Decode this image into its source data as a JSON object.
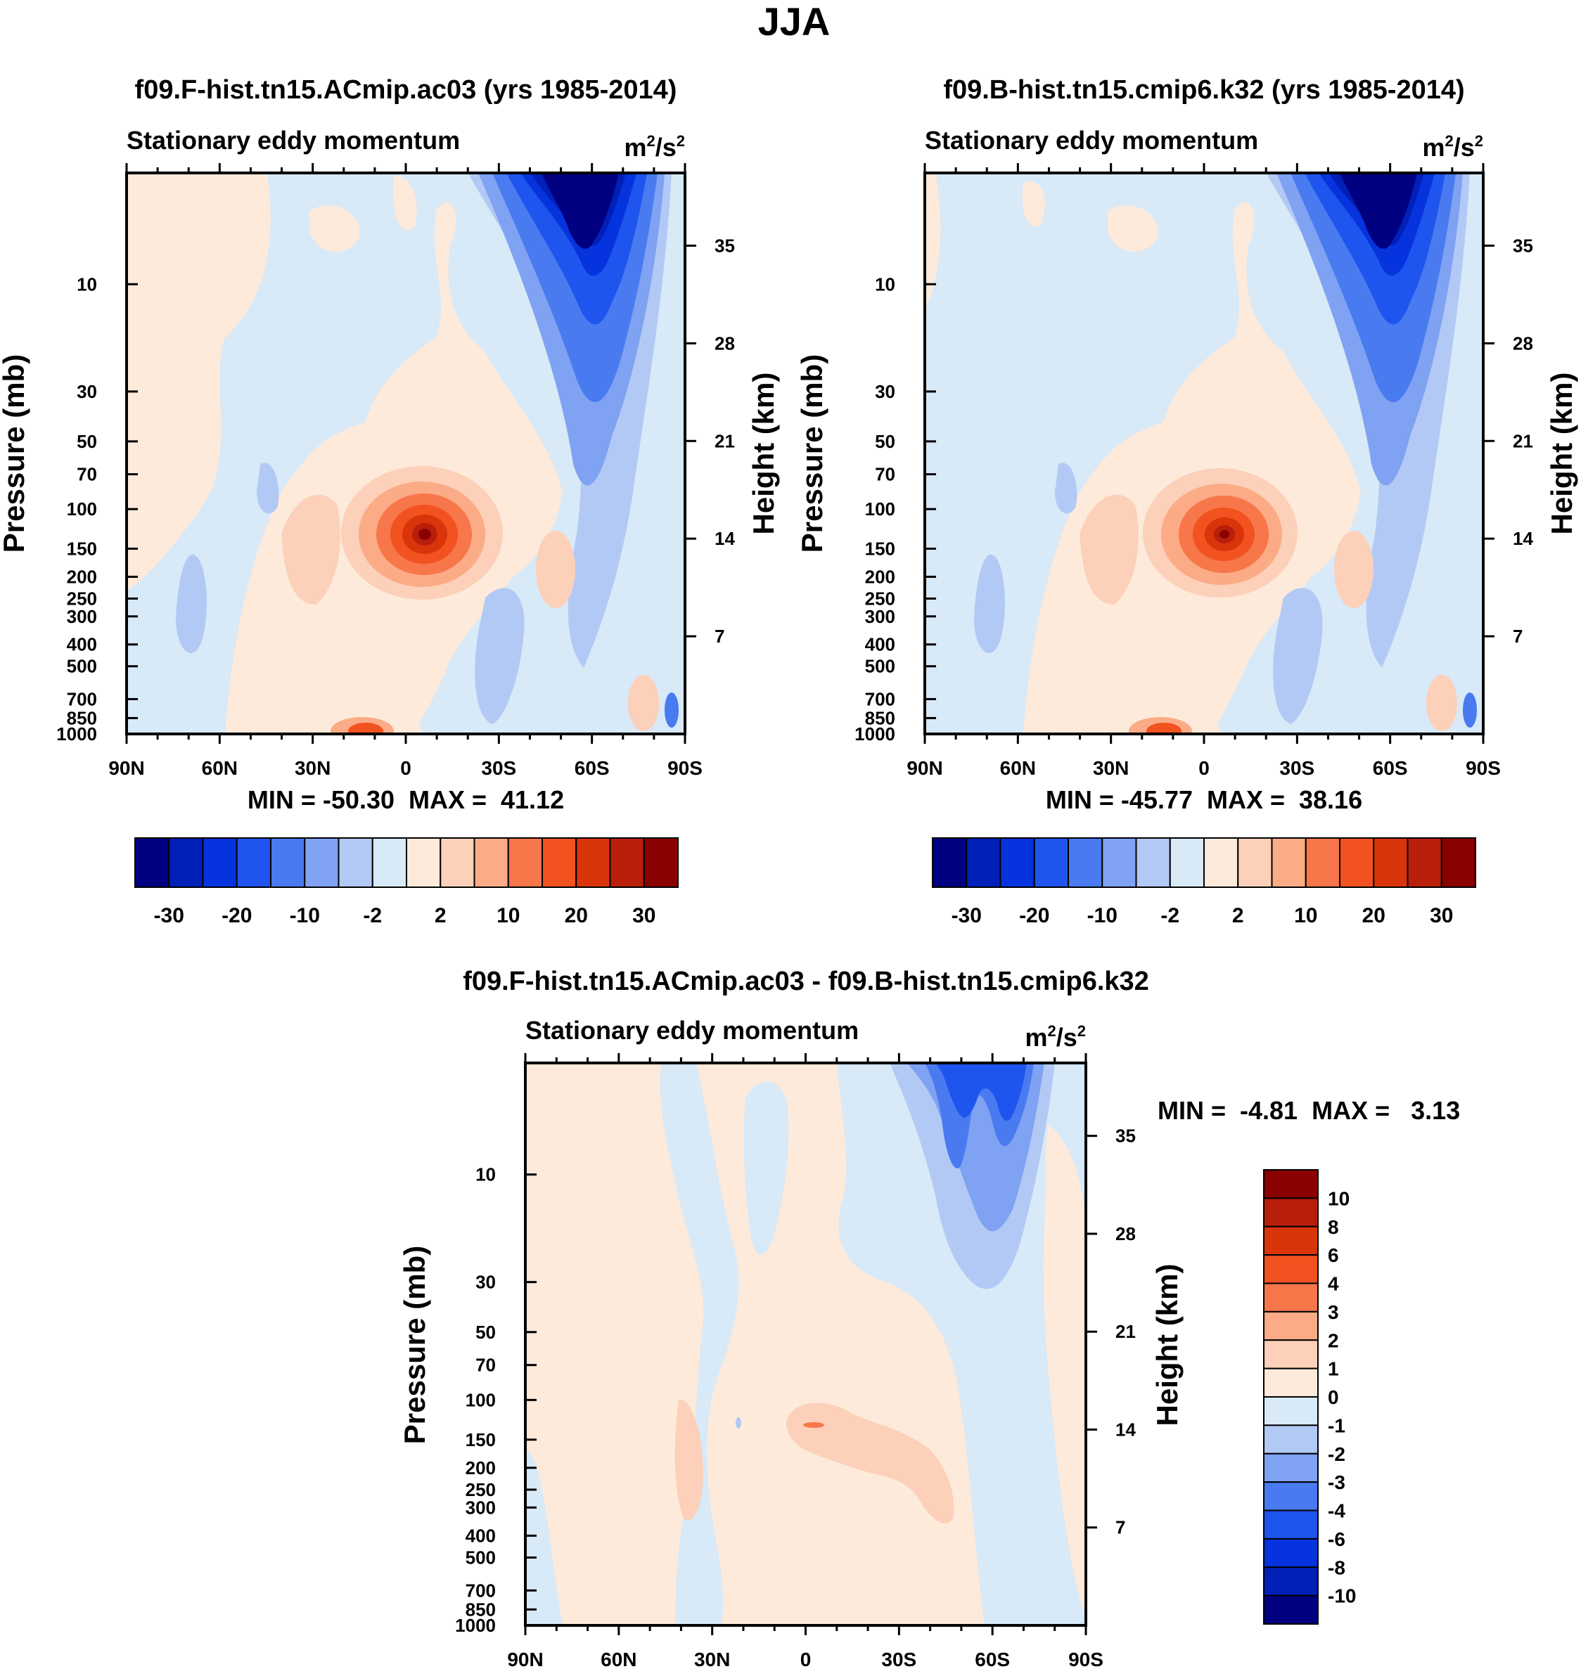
{
  "figure_title": "JJA",
  "colors": {
    "ref_scale": [
      "#000080",
      "#0020b8",
      "#0533dd",
      "#1e55ee",
      "#4a7af0",
      "#7fa2f2",
      "#b3c9f5",
      "#d8e9f8",
      "#fdeadb",
      "#fcd0b9",
      "#fbab86",
      "#f7764a",
      "#f1521f",
      "#da340b",
      "#b81f0b",
      "#890101"
    ],
    "diff_scale": [
      "#000080",
      "#0020b8",
      "#0533dd",
      "#1e55ee",
      "#4a7af0",
      "#7fa2f2",
      "#b3c9f5",
      "#d8e9f8",
      "#fdeadb",
      "#fcd0b9",
      "#fbab86",
      "#f7764a",
      "#f1521f",
      "#da340b",
      "#b81f0b",
      "#890101"
    ]
  },
  "chart_data": [
    {
      "type": "heatmap",
      "title": "f09.F-hist.tn15.ACmip.ac03 (yrs 1985-2014)",
      "left_string": "Stationary eddy momentum",
      "units": {
        "base": "m",
        "sup1": "2",
        "mid": "/s",
        "sup2": "2"
      },
      "xlabel": "",
      "ylabel": "Pressure (mb)",
      "y2label": "Height (km)",
      "x_ticks": [
        "90N",
        "60N",
        "30N",
        "0",
        "30S",
        "60S",
        "90S"
      ],
      "x_range_deg": [
        90,
        -90
      ],
      "y_ticks": [
        10,
        30,
        50,
        70,
        100,
        150,
        200,
        250,
        300,
        400,
        500,
        700,
        850,
        1000
      ],
      "y_range_mb": [
        1000,
        3.2
      ],
      "height_ticks_km": [
        7,
        14,
        21,
        28,
        35
      ],
      "stats": "MIN = -50.30  MAX =  41.12",
      "colorbar": {
        "orientation": "horizontal",
        "labels": [
          "-30",
          "-20",
          "-10",
          "-2",
          "2",
          "10",
          "20",
          "30"
        ],
        "levels": [
          -30,
          -25,
          -20,
          -15,
          -10,
          -5,
          -2,
          0,
          2,
          5,
          10,
          15,
          20,
          25,
          30
        ]
      },
      "features": [
        {
          "name": "upper-stratosphere negative jet",
          "lat_center": -57,
          "p_top_mb": 3.2,
          "p_bottom_mb": 90,
          "min_value": -50.3
        },
        {
          "name": "tropical upper-troposphere maximum",
          "lat_center": -7,
          "p_mb": 150,
          "max_value": 41.12
        },
        {
          "name": "subtropical positive surface cell",
          "lat_center": 13,
          "p_mb": 1000,
          "value": 20
        }
      ]
    },
    {
      "type": "heatmap",
      "title": "f09.B-hist.tn15.cmip6.k32 (yrs 1985-2014)",
      "left_string": "Stationary eddy momentum",
      "units": {
        "base": "m",
        "sup1": "2",
        "mid": "/s",
        "sup2": "2"
      },
      "xlabel": "",
      "ylabel": "Pressure (mb)",
      "y2label": "Height (km)",
      "x_ticks": [
        "90N",
        "60N",
        "30N",
        "0",
        "30S",
        "60S",
        "90S"
      ],
      "x_range_deg": [
        90,
        -90
      ],
      "y_ticks": [
        10,
        30,
        50,
        70,
        100,
        150,
        200,
        250,
        300,
        400,
        500,
        700,
        850,
        1000
      ],
      "y_range_mb": [
        1000,
        3.2
      ],
      "height_ticks_km": [
        7,
        14,
        21,
        28,
        35
      ],
      "stats": "MIN = -45.77  MAX =  38.16",
      "colorbar": {
        "orientation": "horizontal",
        "labels": [
          "-30",
          "-20",
          "-10",
          "-2",
          "2",
          "10",
          "20",
          "30"
        ],
        "levels": [
          -30,
          -25,
          -20,
          -15,
          -10,
          -5,
          -2,
          0,
          2,
          5,
          10,
          15,
          20,
          25,
          30
        ]
      },
      "features": [
        {
          "name": "upper-stratosphere negative jet",
          "lat_center": -57,
          "p_top_mb": 3.2,
          "p_bottom_mb": 90,
          "min_value": -45.77
        },
        {
          "name": "tropical upper-troposphere maximum",
          "lat_center": -7,
          "p_mb": 150,
          "max_value": 38.16
        },
        {
          "name": "subtropical positive surface cell",
          "lat_center": 13,
          "p_mb": 1000,
          "value": 18
        }
      ]
    },
    {
      "type": "heatmap",
      "title": "f09.F-hist.tn15.ACmip.ac03 - f09.B-hist.tn15.cmip6.k32",
      "left_string": "Stationary eddy momentum",
      "units": {
        "base": "m",
        "sup1": "2",
        "mid": "/s",
        "sup2": "2"
      },
      "xlabel": "",
      "ylabel": "Pressure (mb)",
      "y2label": "Height (km)",
      "x_ticks": [
        "90N",
        "60N",
        "30N",
        "0",
        "30S",
        "60S",
        "90S"
      ],
      "x_range_deg": [
        90,
        -90
      ],
      "y_ticks": [
        10,
        30,
        50,
        70,
        100,
        150,
        200,
        250,
        300,
        400,
        500,
        700,
        850,
        1000
      ],
      "y_range_mb": [
        1000,
        3.2
      ],
      "height_ticks_km": [
        7,
        14,
        21,
        28,
        35
      ],
      "stats": "MIN =  -4.81  MAX =   3.13",
      "colorbar": {
        "orientation": "vertical",
        "labels": [
          "10",
          "8",
          "6",
          "4",
          "3",
          "2",
          "1",
          "0",
          "-1",
          "-2",
          "-3",
          "-4",
          "-6",
          "-8",
          "-10"
        ],
        "levels": [
          10,
          8,
          6,
          4,
          3,
          2,
          1,
          0,
          -1,
          -2,
          -3,
          -4,
          -6,
          -8,
          -10
        ]
      },
      "features": [
        {
          "name": "stratospheric negative difference",
          "lat_center": -55,
          "p_top_mb": 3.2,
          "p_bottom_mb": 80,
          "min_value": -4.81
        },
        {
          "name": "tropical positive difference",
          "lat_center": -2,
          "p_mb": 150,
          "max_value": 3.13
        }
      ]
    }
  ]
}
